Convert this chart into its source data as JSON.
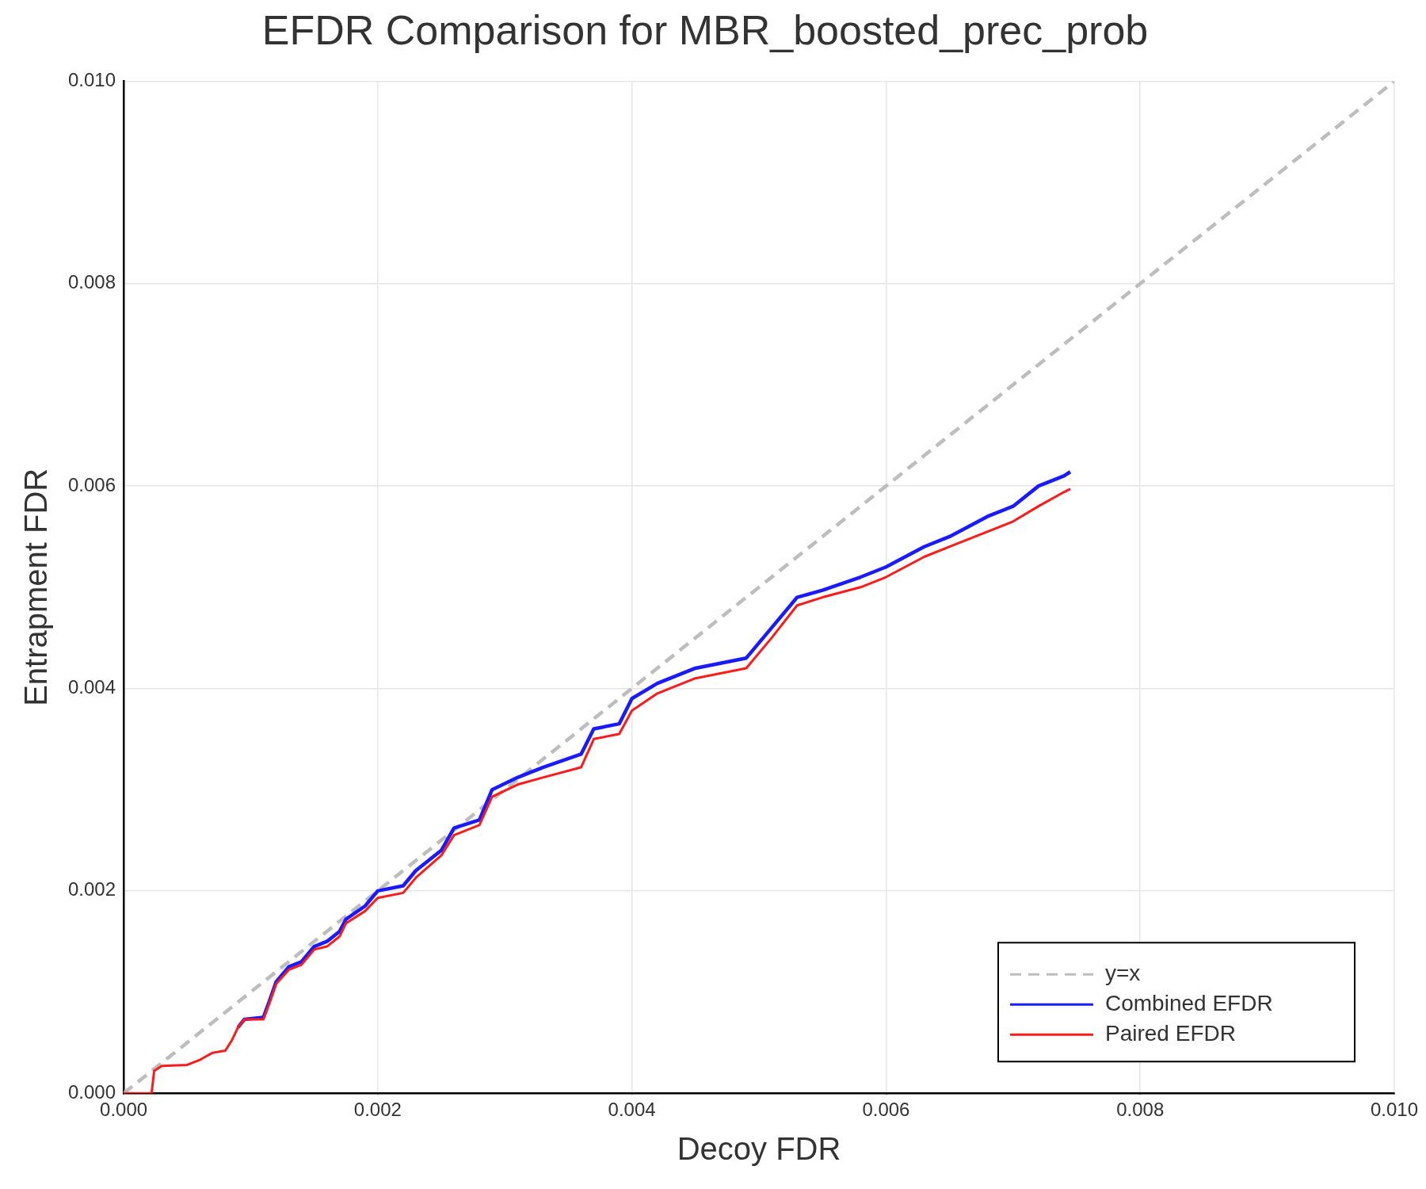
{
  "chart_data": {
    "type": "line",
    "title": "EFDR Comparison for MBR_boosted_prec_prob",
    "xlabel": "Decoy FDR",
    "ylabel": "Entrapment FDR",
    "xlim": [
      0,
      0.01
    ],
    "ylim": [
      0,
      0.01
    ],
    "xticks": [
      {
        "value": 0,
        "label": "0.000"
      },
      {
        "value": 0.002,
        "label": "0.002"
      },
      {
        "value": 0.004,
        "label": "0.004"
      },
      {
        "value": 0.006,
        "label": "0.006"
      },
      {
        "value": 0.008,
        "label": "0.008"
      },
      {
        "value": 0.01,
        "label": "0.010"
      }
    ],
    "yticks": [
      {
        "value": 0,
        "label": "0.000"
      },
      {
        "value": 0.002,
        "label": "0.002"
      },
      {
        "value": 0.004,
        "label": "0.004"
      },
      {
        "value": 0.006,
        "label": "0.006"
      },
      {
        "value": 0.008,
        "label": "0.008"
      },
      {
        "value": 0.01,
        "label": "0.010"
      }
    ],
    "grid": true,
    "legend": "bottom right",
    "marker": "none",
    "series": [
      {
        "name": "y=x",
        "color": "#bdbdbd",
        "line_style": "dashed",
        "x": [
          0,
          0.01
        ],
        "values": [
          0,
          0.01
        ]
      },
      {
        "name": "Combined EFDR",
        "color": "#1a1aff",
        "line_style": "solid",
        "x": [
          0.0009,
          0.00095,
          0.0011,
          0.00115,
          0.0012,
          0.0013,
          0.0014,
          0.0015,
          0.0016,
          0.0017,
          0.00175,
          0.0019,
          0.002,
          0.0022,
          0.0023,
          0.0025,
          0.0026,
          0.0028,
          0.0029,
          0.0031,
          0.0033,
          0.0036,
          0.0037,
          0.0039,
          0.004,
          0.0042,
          0.0045,
          0.0049,
          0.0051,
          0.0053,
          0.0055,
          0.0058,
          0.006,
          0.0063,
          0.0065,
          0.0068,
          0.007,
          0.0072,
          0.0074,
          0.00745
        ],
        "values": [
          0.00065,
          0.00073,
          0.00075,
          0.00092,
          0.0011,
          0.00125,
          0.0013,
          0.00145,
          0.0015,
          0.0016,
          0.00172,
          0.00185,
          0.002,
          0.00205,
          0.0022,
          0.0024,
          0.00262,
          0.0027,
          0.003,
          0.00312,
          0.00322,
          0.00335,
          0.0036,
          0.00365,
          0.0039,
          0.00405,
          0.0042,
          0.0043,
          0.0046,
          0.0049,
          0.00497,
          0.0051,
          0.0052,
          0.0054,
          0.0055,
          0.0057,
          0.0058,
          0.006,
          0.0061,
          0.00614
        ]
      },
      {
        "name": "Paired EFDR",
        "color": "#ff1a1a",
        "line_style": "solid",
        "x": [
          0,
          0.00022,
          0.00024,
          0.0003,
          0.0005,
          0.0006,
          0.0007,
          0.0008,
          0.00085,
          0.0009,
          0.00095,
          0.0011,
          0.00115,
          0.0012,
          0.0013,
          0.0014,
          0.0015,
          0.0016,
          0.0017,
          0.00175,
          0.0019,
          0.002,
          0.0022,
          0.0023,
          0.0025,
          0.0026,
          0.0028,
          0.0029,
          0.0031,
          0.0033,
          0.0036,
          0.0037,
          0.0039,
          0.004,
          0.0042,
          0.0045,
          0.0049,
          0.0051,
          0.0053,
          0.0055,
          0.0058,
          0.006,
          0.0063,
          0.0065,
          0.0068,
          0.007,
          0.0072,
          0.0074,
          0.00745
        ],
        "values": [
          0,
          0,
          0.00022,
          0.00027,
          0.00028,
          0.00033,
          0.0004,
          0.00042,
          0.00052,
          0.00065,
          0.00073,
          0.00073,
          0.0009,
          0.00108,
          0.00122,
          0.00127,
          0.00142,
          0.00145,
          0.00155,
          0.00168,
          0.0018,
          0.00193,
          0.00198,
          0.00213,
          0.00235,
          0.00255,
          0.00265,
          0.00293,
          0.00305,
          0.00312,
          0.00322,
          0.0035,
          0.00355,
          0.00378,
          0.00395,
          0.0041,
          0.0042,
          0.0045,
          0.00482,
          0.0049,
          0.005,
          0.0051,
          0.0053,
          0.0054,
          0.00555,
          0.00565,
          0.0058,
          0.00594,
          0.00597
        ]
      }
    ]
  }
}
